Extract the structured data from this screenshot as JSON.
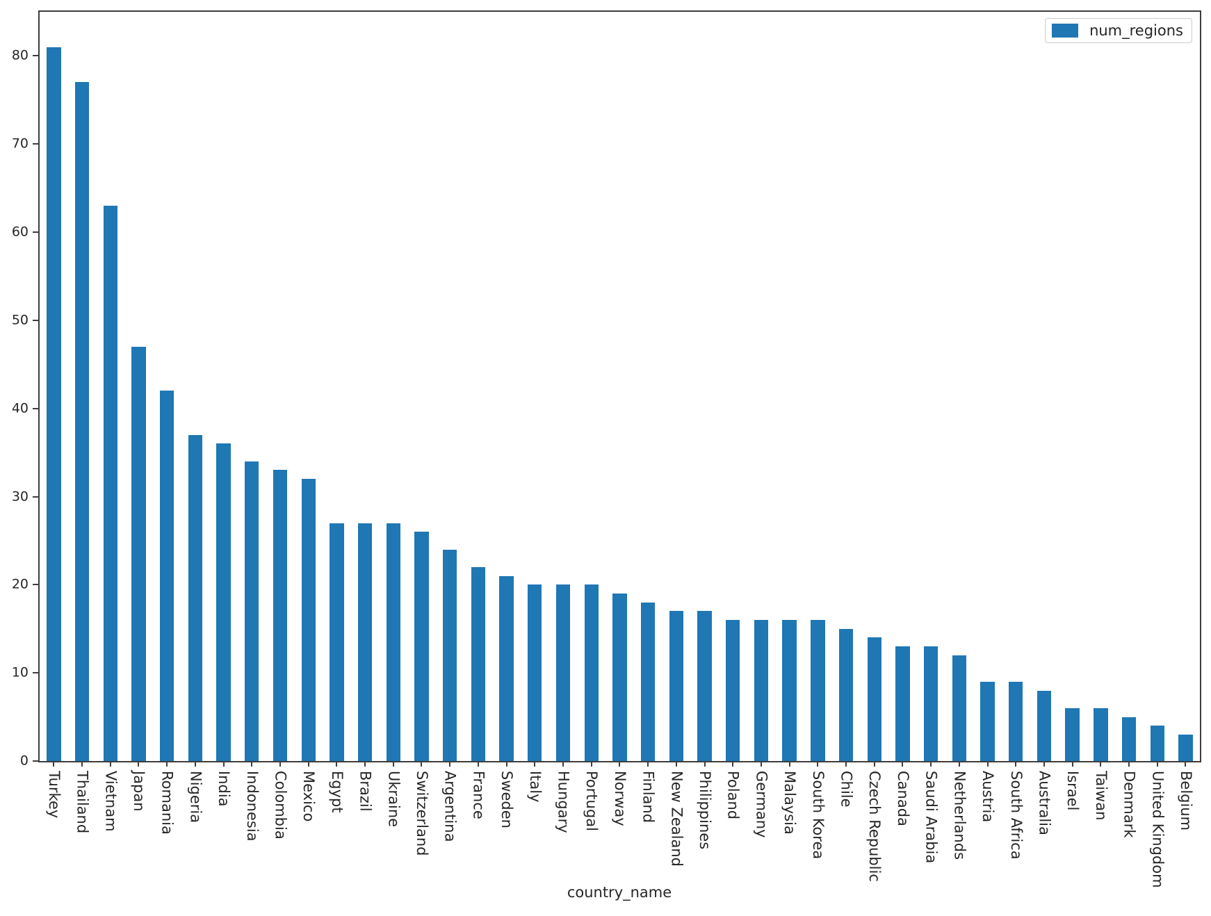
{
  "chart_data": {
    "type": "bar",
    "title": "",
    "xlabel": "country_name",
    "ylabel": "",
    "legend": {
      "label": "num_regions",
      "position": "upper right"
    },
    "bar_color": "#1f77b4",
    "spine_color": "#3d3d3d",
    "grid": false,
    "ylim": [
      0,
      85
    ],
    "yticks": [
      0,
      10,
      20,
      30,
      40,
      50,
      60,
      70,
      80
    ],
    "bar_width_fraction": 0.5,
    "categories": [
      "Turkey",
      "Thailand",
      "Vietnam",
      "Japan",
      "Romania",
      "Nigeria",
      "India",
      "Indonesia",
      "Colombia",
      "Mexico",
      "Egypt",
      "Brazil",
      "Ukraine",
      "Switzerland",
      "Argentina",
      "France",
      "Sweden",
      "Italy",
      "Hungary",
      "Portugal",
      "Norway",
      "Finland",
      "New Zealand",
      "Philippines",
      "Poland",
      "Germany",
      "Malaysia",
      "South Korea",
      "Chile",
      "Czech Republic",
      "Canada",
      "Saudi Arabia",
      "Netherlands",
      "Austria",
      "South Africa",
      "Australia",
      "Israel",
      "Taiwan",
      "Denmark",
      "United Kingdom",
      "Belgium"
    ],
    "values": [
      81,
      77,
      63,
      47,
      42,
      37,
      36,
      34,
      33,
      32,
      27,
      27,
      27,
      26,
      24,
      22,
      21,
      20,
      20,
      20,
      19,
      18,
      17,
      17,
      16,
      16,
      16,
      16,
      15,
      14,
      13,
      13,
      12,
      9,
      9,
      8,
      6,
      6,
      5,
      4,
      3
    ]
  }
}
